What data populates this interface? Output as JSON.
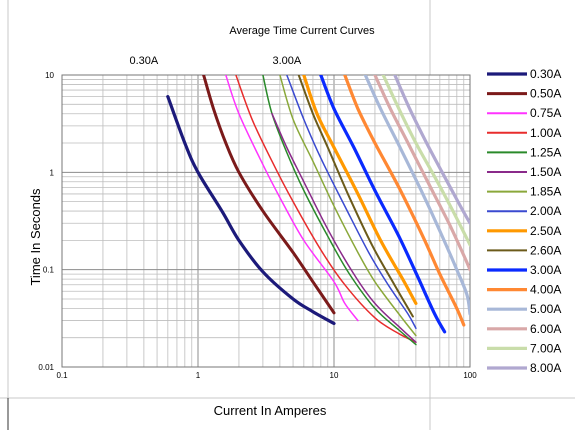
{
  "chart_data": {
    "type": "line",
    "title": "Average Time Current Curves",
    "xlabel": "Current In Amperes",
    "ylabel": "Time In Seconds",
    "x_scale": "log",
    "y_scale": "log",
    "xlim": [
      0.1,
      100
    ],
    "ylim": [
      0.01,
      10
    ],
    "x_ticks": [
      {
        "value": 0.1,
        "label": "0.1"
      },
      {
        "value": 1,
        "label": "1"
      },
      {
        "value": 10,
        "label": "10"
      },
      {
        "value": 100,
        "label": "100"
      }
    ],
    "y_ticks": [
      {
        "value": 10,
        "label": "10"
      },
      {
        "value": 1,
        "label": "1"
      },
      {
        "value": 0.1,
        "label": "0.1"
      },
      {
        "value": 0.01,
        "label": "0.01"
      }
    ],
    "grid": true,
    "legend_position": "right",
    "annotations": [
      {
        "text": "0.30A",
        "x": 0.4,
        "y": 13
      },
      {
        "text": "3.00A",
        "x": 4.5,
        "y": 13
      }
    ],
    "series": [
      {
        "name": "0.30A",
        "color": "#1c1a7a",
        "width": 3.2,
        "points": [
          [
            0.6,
            6.0
          ],
          [
            0.8,
            2.0
          ],
          [
            1.0,
            1.0
          ],
          [
            1.5,
            0.4
          ],
          [
            2.0,
            0.2
          ],
          [
            3.0,
            0.095
          ],
          [
            5.0,
            0.05
          ],
          [
            7.0,
            0.037
          ],
          [
            10.0,
            0.028
          ]
        ]
      },
      {
        "name": "0.50A",
        "color": "#7b1a1a",
        "width": 3.0,
        "points": [
          [
            1.1,
            10.0
          ],
          [
            1.3,
            4.5
          ],
          [
            1.6,
            2.0
          ],
          [
            2.0,
            1.0
          ],
          [
            3.0,
            0.4
          ],
          [
            5.0,
            0.15
          ],
          [
            7.0,
            0.075
          ],
          [
            10.0,
            0.036
          ]
        ]
      },
      {
        "name": "0.75A",
        "color": "#ff33ff",
        "width": 1.5,
        "points": [
          [
            1.6,
            10.0
          ],
          [
            2.0,
            4.0
          ],
          [
            3.0,
            1.2
          ],
          [
            4.0,
            0.55
          ],
          [
            6.0,
            0.2
          ],
          [
            10.0,
            0.075
          ],
          [
            12.0,
            0.045
          ],
          [
            15.0,
            0.03
          ]
        ]
      },
      {
        "name": "1.00A",
        "color": "#e82c2c",
        "width": 1.5,
        "points": [
          [
            1.9,
            10.0
          ],
          [
            2.5,
            3.5
          ],
          [
            3.5,
            1.3
          ],
          [
            5.0,
            0.5
          ],
          [
            8.0,
            0.16
          ],
          [
            12.0,
            0.07
          ],
          [
            20.0,
            0.032
          ],
          [
            30.0,
            0.022
          ],
          [
            40.0,
            0.018
          ]
        ]
      },
      {
        "name": "1.25A",
        "color": "#2a8a2a",
        "width": 1.5,
        "points": [
          [
            3.0,
            10.0
          ],
          [
            3.5,
            4.0
          ],
          [
            4.5,
            1.6
          ],
          [
            6.0,
            0.65
          ],
          [
            9.0,
            0.22
          ],
          [
            13.0,
            0.09
          ],
          [
            20.0,
            0.04
          ],
          [
            30.0,
            0.024
          ],
          [
            40.0,
            0.017
          ]
        ]
      },
      {
        "name": "1.50A",
        "color": "#8a2a8a",
        "width": 1.5,
        "points": [
          [
            3.5,
            4.0
          ],
          [
            4.5,
            1.8
          ],
          [
            6.0,
            0.8
          ],
          [
            9.0,
            0.26
          ],
          [
            14.0,
            0.09
          ],
          [
            20.0,
            0.045
          ],
          [
            30.0,
            0.026
          ],
          [
            40.0,
            0.018
          ]
        ]
      },
      {
        "name": "1.85A",
        "color": "#8aa83a",
        "width": 1.5,
        "points": [
          [
            4.0,
            10.0
          ],
          [
            5.0,
            3.5
          ],
          [
            7.0,
            1.3
          ],
          [
            10.0,
            0.45
          ],
          [
            15.0,
            0.15
          ],
          [
            20.0,
            0.075
          ],
          [
            30.0,
            0.035
          ],
          [
            40.0,
            0.021
          ]
        ]
      },
      {
        "name": "2.00A",
        "color": "#3a4ad0",
        "width": 1.5,
        "points": [
          [
            4.5,
            10.0
          ],
          [
            6.0,
            3.5
          ],
          [
            8.0,
            1.4
          ],
          [
            12.0,
            0.45
          ],
          [
            18.0,
            0.15
          ],
          [
            25.0,
            0.07
          ],
          [
            35.0,
            0.035
          ],
          [
            40.0,
            0.025
          ]
        ]
      },
      {
        "name": "2.50A",
        "color": "#ff9900",
        "width": 3.2,
        "points": [
          [
            6.0,
            10.0
          ],
          [
            7.5,
            4.0
          ],
          [
            10.0,
            1.8
          ],
          [
            15.0,
            0.6
          ],
          [
            22.0,
            0.2
          ],
          [
            32.0,
            0.08
          ],
          [
            40.0,
            0.045
          ]
        ]
      },
      {
        "name": "2.60A",
        "color": "#6b5a1a",
        "width": 2.0,
        "points": [
          [
            5.5,
            10.0
          ],
          [
            7.0,
            4.0
          ],
          [
            9.0,
            1.8
          ],
          [
            13.0,
            0.55
          ],
          [
            19.0,
            0.18
          ],
          [
            27.0,
            0.075
          ],
          [
            38.0,
            0.033
          ]
        ]
      },
      {
        "name": "3.00A",
        "color": "#0a2aff",
        "width": 3.2,
        "points": [
          [
            8.0,
            10.0
          ],
          [
            10.0,
            4.5
          ],
          [
            14.0,
            1.8
          ],
          [
            20.0,
            0.65
          ],
          [
            30.0,
            0.22
          ],
          [
            42.0,
            0.08
          ],
          [
            55.0,
            0.035
          ],
          [
            65.0,
            0.023
          ]
        ]
      },
      {
        "name": "4.00A",
        "color": "#ff8833",
        "width": 3.2,
        "points": [
          [
            12.0,
            10.0
          ],
          [
            15.0,
            4.5
          ],
          [
            20.0,
            2.0
          ],
          [
            30.0,
            0.7
          ],
          [
            45.0,
            0.22
          ],
          [
            60.0,
            0.09
          ],
          [
            80.0,
            0.04
          ],
          [
            90.0,
            0.027
          ]
        ]
      },
      {
        "name": "5.00A",
        "color": "#a8b8d8",
        "width": 3.2,
        "points": [
          [
            17.0,
            10.0
          ],
          [
            22.0,
            4.5
          ],
          [
            30.0,
            1.9
          ],
          [
            45.0,
            0.6
          ],
          [
            60.0,
            0.25
          ],
          [
            80.0,
            0.1
          ],
          [
            95.0,
            0.055
          ],
          [
            100.0,
            0.035
          ]
        ]
      },
      {
        "name": "6.00A",
        "color": "#d9a8a8",
        "width": 3.2,
        "points": [
          [
            20.0,
            10.0
          ],
          [
            26.0,
            4.5
          ],
          [
            35.0,
            2.0
          ],
          [
            50.0,
            0.75
          ],
          [
            70.0,
            0.3
          ],
          [
            90.0,
            0.14
          ],
          [
            100.0,
            0.1
          ]
        ]
      },
      {
        "name": "7.00A",
        "color": "#c9ddaa",
        "width": 3.2,
        "points": [
          [
            23.0,
            10.0
          ],
          [
            30.0,
            4.5
          ],
          [
            40.0,
            2.0
          ],
          [
            55.0,
            0.9
          ],
          [
            75.0,
            0.4
          ],
          [
            100.0,
            0.18
          ]
        ]
      },
      {
        "name": "8.00A",
        "color": "#b0a8d0",
        "width": 3.2,
        "points": [
          [
            28.0,
            10.0
          ],
          [
            36.0,
            4.5
          ],
          [
            48.0,
            2.0
          ],
          [
            65.0,
            0.9
          ],
          [
            85.0,
            0.45
          ],
          [
            100.0,
            0.3
          ]
        ]
      }
    ]
  }
}
